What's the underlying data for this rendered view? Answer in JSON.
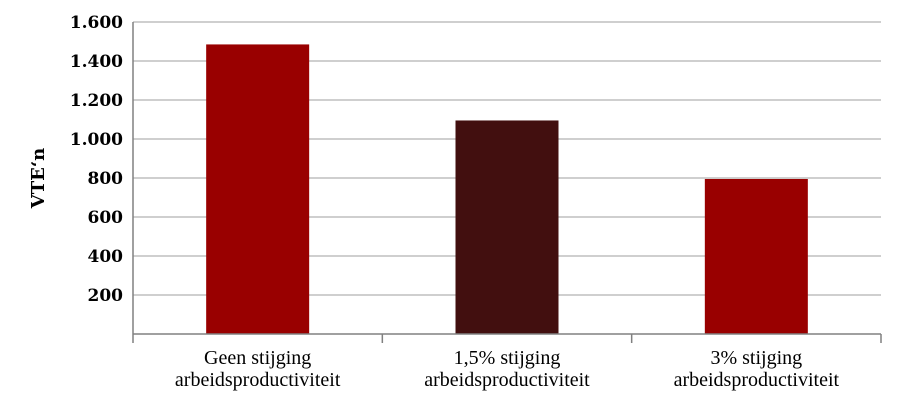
{
  "chart_data": {
    "type": "bar",
    "title": "",
    "xlabel": "",
    "ylabel": "VTE‘n",
    "categories": [
      [
        "Geen stijging",
        "arbeidsproductiviteit"
      ],
      [
        "1,5% stijging",
        "arbeidsproductiviteit"
      ],
      [
        "3% stijging",
        "arbeidsproductiviteit"
      ]
    ],
    "values": [
      1485,
      1095,
      795
    ],
    "bar_colors": [
      "#990000",
      "#420f0f",
      "#990000"
    ],
    "ylim": [
      0,
      1600
    ],
    "yticks": [
      200,
      400,
      600,
      800,
      1000,
      1200,
      1400,
      1600
    ],
    "ytick_labels": [
      "200",
      "400",
      "600",
      "800",
      "1.000",
      "1.200",
      "1.400",
      "1.600"
    ],
    "grid": true,
    "legend": "none"
  }
}
